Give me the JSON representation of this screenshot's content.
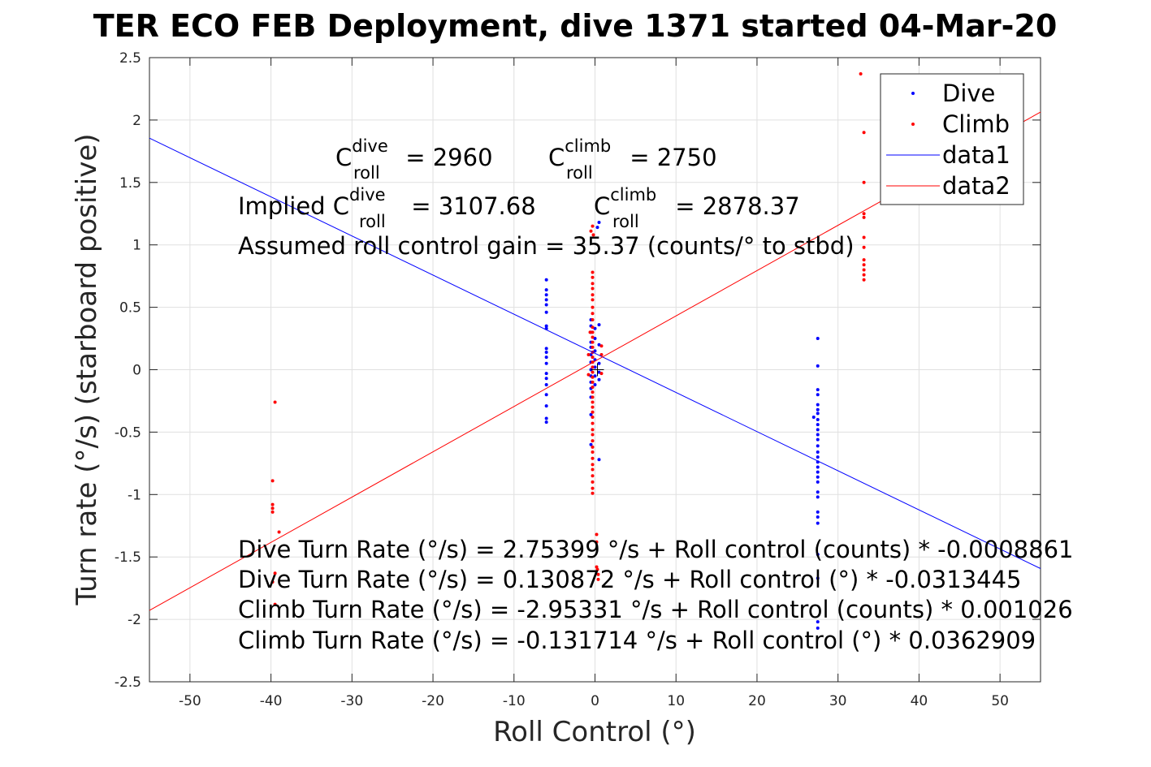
{
  "chart_data": {
    "type": "scatter",
    "title": "TER ECO FEB Deployment, dive 1371 started 04-Mar-20",
    "xlabel": "Roll Control (°)",
    "ylabel": "Turn rate (°/s) (starboard positive)",
    "xlim": [
      -55,
      55
    ],
    "ylim": [
      -2.5,
      2.5
    ],
    "xticks": [
      -50,
      -40,
      -30,
      -20,
      -10,
      0,
      10,
      20,
      30,
      40,
      50
    ],
    "yticks": [
      -2.5,
      -2,
      -1.5,
      -1,
      -0.5,
      0,
      0.5,
      1,
      1.5,
      2,
      2.5
    ],
    "grid": true,
    "legend_position": "top-right",
    "colors": {
      "dive": "#0000ff",
      "climb": "#ff0000",
      "axes": "#262626",
      "grid": "#e0e0e0"
    },
    "series": [
      {
        "name": "Dive",
        "kind": "points",
        "color": "#0000ff",
        "points": [
          [
            -6,
            0.72
          ],
          [
            -6,
            0.64
          ],
          [
            -6,
            0.6
          ],
          [
            -6,
            0.56
          ],
          [
            -6,
            0.52
          ],
          [
            -6,
            0.46
          ],
          [
            -6,
            0.35
          ],
          [
            -6,
            0.33
          ],
          [
            -6,
            0.17
          ],
          [
            -6,
            0.14
          ],
          [
            -6,
            0.1
          ],
          [
            -6,
            0.05
          ],
          [
            -6,
            -0.03
          ],
          [
            -6,
            -0.07
          ],
          [
            -6,
            -0.12
          ],
          [
            -6,
            -0.2
          ],
          [
            -6,
            -0.29
          ],
          [
            -6,
            -0.39
          ],
          [
            -6,
            -0.42
          ],
          [
            -0.5,
            0.4
          ],
          [
            -0.5,
            0.35
          ],
          [
            -0.5,
            0.3
          ],
          [
            -0.5,
            0.22
          ],
          [
            -0.5,
            0.18
          ],
          [
            -0.5,
            0.12
          ],
          [
            -0.5,
            0.06
          ],
          [
            -0.5,
            0.0
          ],
          [
            -0.5,
            -0.05
          ],
          [
            -0.5,
            -0.1
          ],
          [
            -0.5,
            -0.15
          ],
          [
            -0.5,
            -0.22
          ],
          [
            -0.5,
            -0.36
          ],
          [
            -0.5,
            -0.6
          ],
          [
            0,
            0.33
          ],
          [
            0,
            0.25
          ],
          [
            0,
            0.15
          ],
          [
            0,
            0.08
          ],
          [
            0,
            0.02
          ],
          [
            0,
            -0.05
          ],
          [
            0,
            -0.12
          ],
          [
            0.5,
            0.36
          ],
          [
            0.5,
            0.2
          ],
          [
            0.5,
            0.05
          ],
          [
            0.5,
            -0.02
          ],
          [
            0.5,
            -0.08
          ],
          [
            0.5,
            -0.72
          ],
          [
            0.5,
            1.18
          ],
          [
            0.3,
            1.14
          ],
          [
            27.5,
            0.25
          ],
          [
            27.5,
            0.03
          ],
          [
            27.5,
            -0.16
          ],
          [
            27.5,
            -0.2
          ],
          [
            27.5,
            -0.28
          ],
          [
            27.5,
            -0.32
          ],
          [
            27.5,
            -0.35
          ],
          [
            27.5,
            -0.4
          ],
          [
            27.5,
            -0.44
          ],
          [
            27.5,
            -0.48
          ],
          [
            27.5,
            -0.52
          ],
          [
            27.5,
            -0.56
          ],
          [
            27.5,
            -0.61
          ],
          [
            27.5,
            -0.66
          ],
          [
            27.5,
            -0.7
          ],
          [
            27.5,
            -0.74
          ],
          [
            27.5,
            -0.78
          ],
          [
            27.5,
            -0.82
          ],
          [
            27.5,
            -0.86
          ],
          [
            27.5,
            -0.9
          ],
          [
            27.5,
            -0.98
          ],
          [
            27.5,
            -1.02
          ],
          [
            27.5,
            -1.14
          ],
          [
            27.5,
            -1.18
          ],
          [
            27.5,
            -1.23
          ],
          [
            27.5,
            -1.48
          ],
          [
            27.5,
            -1.67
          ],
          [
            27.5,
            -2.02
          ],
          [
            27.5,
            -2.07
          ],
          [
            27,
            -0.38
          ]
        ]
      },
      {
        "name": "Climb",
        "kind": "points",
        "color": "#ff0000",
        "points": [
          [
            -39.5,
            -0.26
          ],
          [
            -39.8,
            -0.89
          ],
          [
            -39.8,
            -1.08
          ],
          [
            -39.8,
            -1.11
          ],
          [
            -39.8,
            -1.14
          ],
          [
            -39,
            -1.3
          ],
          [
            -39.5,
            -1.63
          ],
          [
            -39.8,
            -1.7
          ],
          [
            -39.5,
            -1.88
          ],
          [
            -0.5,
            1.11
          ],
          [
            -0.3,
            1.15
          ],
          [
            -0.2,
            1.08
          ],
          [
            -0.3,
            0.78
          ],
          [
            -0.3,
            0.74
          ],
          [
            -0.3,
            0.69
          ],
          [
            -0.3,
            0.65
          ],
          [
            -0.3,
            0.6
          ],
          [
            -0.3,
            0.56
          ],
          [
            -0.3,
            0.5
          ],
          [
            -0.3,
            0.45
          ],
          [
            -0.3,
            0.4
          ],
          [
            -0.3,
            0.34
          ],
          [
            -0.3,
            0.3
          ],
          [
            -0.3,
            0.26
          ],
          [
            -0.3,
            0.22
          ],
          [
            -0.3,
            0.18
          ],
          [
            -0.3,
            0.14
          ],
          [
            -0.3,
            0.1
          ],
          [
            -0.3,
            0.06
          ],
          [
            -0.3,
            0.02
          ],
          [
            -0.3,
            -0.02
          ],
          [
            -0.3,
            -0.06
          ],
          [
            -0.3,
            -0.1
          ],
          [
            -0.3,
            -0.14
          ],
          [
            -0.3,
            -0.18
          ],
          [
            -0.3,
            -0.22
          ],
          [
            -0.3,
            -0.26
          ],
          [
            -0.3,
            -0.3
          ],
          [
            -0.3,
            -0.34
          ],
          [
            -0.3,
            -0.38
          ],
          [
            -0.3,
            -0.43
          ],
          [
            -0.3,
            -0.48
          ],
          [
            -0.3,
            -0.52
          ],
          [
            -0.3,
            -0.57
          ],
          [
            -0.3,
            -0.62
          ],
          [
            -0.3,
            -0.66
          ],
          [
            -0.3,
            -0.71
          ],
          [
            -0.3,
            -0.76
          ],
          [
            -0.3,
            -0.8
          ],
          [
            -0.3,
            -0.85
          ],
          [
            -0.3,
            -0.9
          ],
          [
            -0.3,
            -0.95
          ],
          [
            -0.3,
            -0.99
          ],
          [
            0.2,
            -1.32
          ],
          [
            0.2,
            -1.38
          ],
          [
            0.2,
            -1.58
          ],
          [
            0.3,
            -1.6
          ],
          [
            0.4,
            -1.64
          ],
          [
            0.4,
            -1.68
          ],
          [
            0.8,
            0.19
          ],
          [
            0.8,
            0.12
          ],
          [
            0.8,
            -0.03
          ],
          [
            -0.8,
            0.12
          ],
          [
            -0.8,
            -0.04
          ],
          [
            -0.6,
            0.3
          ],
          [
            32.8,
            2.37
          ],
          [
            33.2,
            1.9
          ],
          [
            33.2,
            1.5
          ],
          [
            33.2,
            1.25
          ],
          [
            33.2,
            1.22
          ],
          [
            33.2,
            1.06
          ],
          [
            33.2,
            0.98
          ],
          [
            33.2,
            0.88
          ],
          [
            33.2,
            0.84
          ],
          [
            33.2,
            0.8
          ],
          [
            33.2,
            0.76
          ],
          [
            33.2,
            0.72
          ]
        ]
      },
      {
        "name": "data1",
        "kind": "line",
        "color": "#0000ff",
        "x": [
          -55,
          55
        ],
        "y": [
          1.855,
          -1.593
        ]
      },
      {
        "name": "data2",
        "kind": "line",
        "color": "#ff0000",
        "x": [
          -55,
          55
        ],
        "y": [
          -1.928,
          2.064
        ]
      }
    ],
    "legend": [
      "Dive",
      "Climb",
      "data1",
      "data2"
    ],
    "annotations": {
      "c_roll_dive": {
        "base": "C",
        "sup": "dive",
        "sub": "roll",
        "value": " = 2960"
      },
      "c_roll_climb": {
        "base": "C",
        "sup": "climb",
        "sub": "roll",
        "value": " = 2750"
      },
      "implied_prefix": "Implied C",
      "implied_dive": {
        "sup": "dive",
        "sub": "roll",
        "value": " = 3107.68"
      },
      "implied_climb": {
        "base": "C",
        "sup": "climb",
        "sub": "roll",
        "value": " = 2878.37"
      },
      "gain": "Assumed roll control gain = 35.37 (counts/° to stbd)",
      "eq_lines": [
        "Dive Turn Rate (°/s) = 2.75399 °/s + Roll control (counts) * -0.0008861",
        "Dive Turn Rate (°/s) = 0.130872 °/s + Roll control (°) * -0.0313445",
        "Climb Turn Rate (°/s) = -2.95331 °/s + Roll control (counts) * 0.001026",
        "Climb Turn Rate (°/s) = -0.131714 °/s + Roll control (°) * 0.0362909"
      ]
    }
  }
}
